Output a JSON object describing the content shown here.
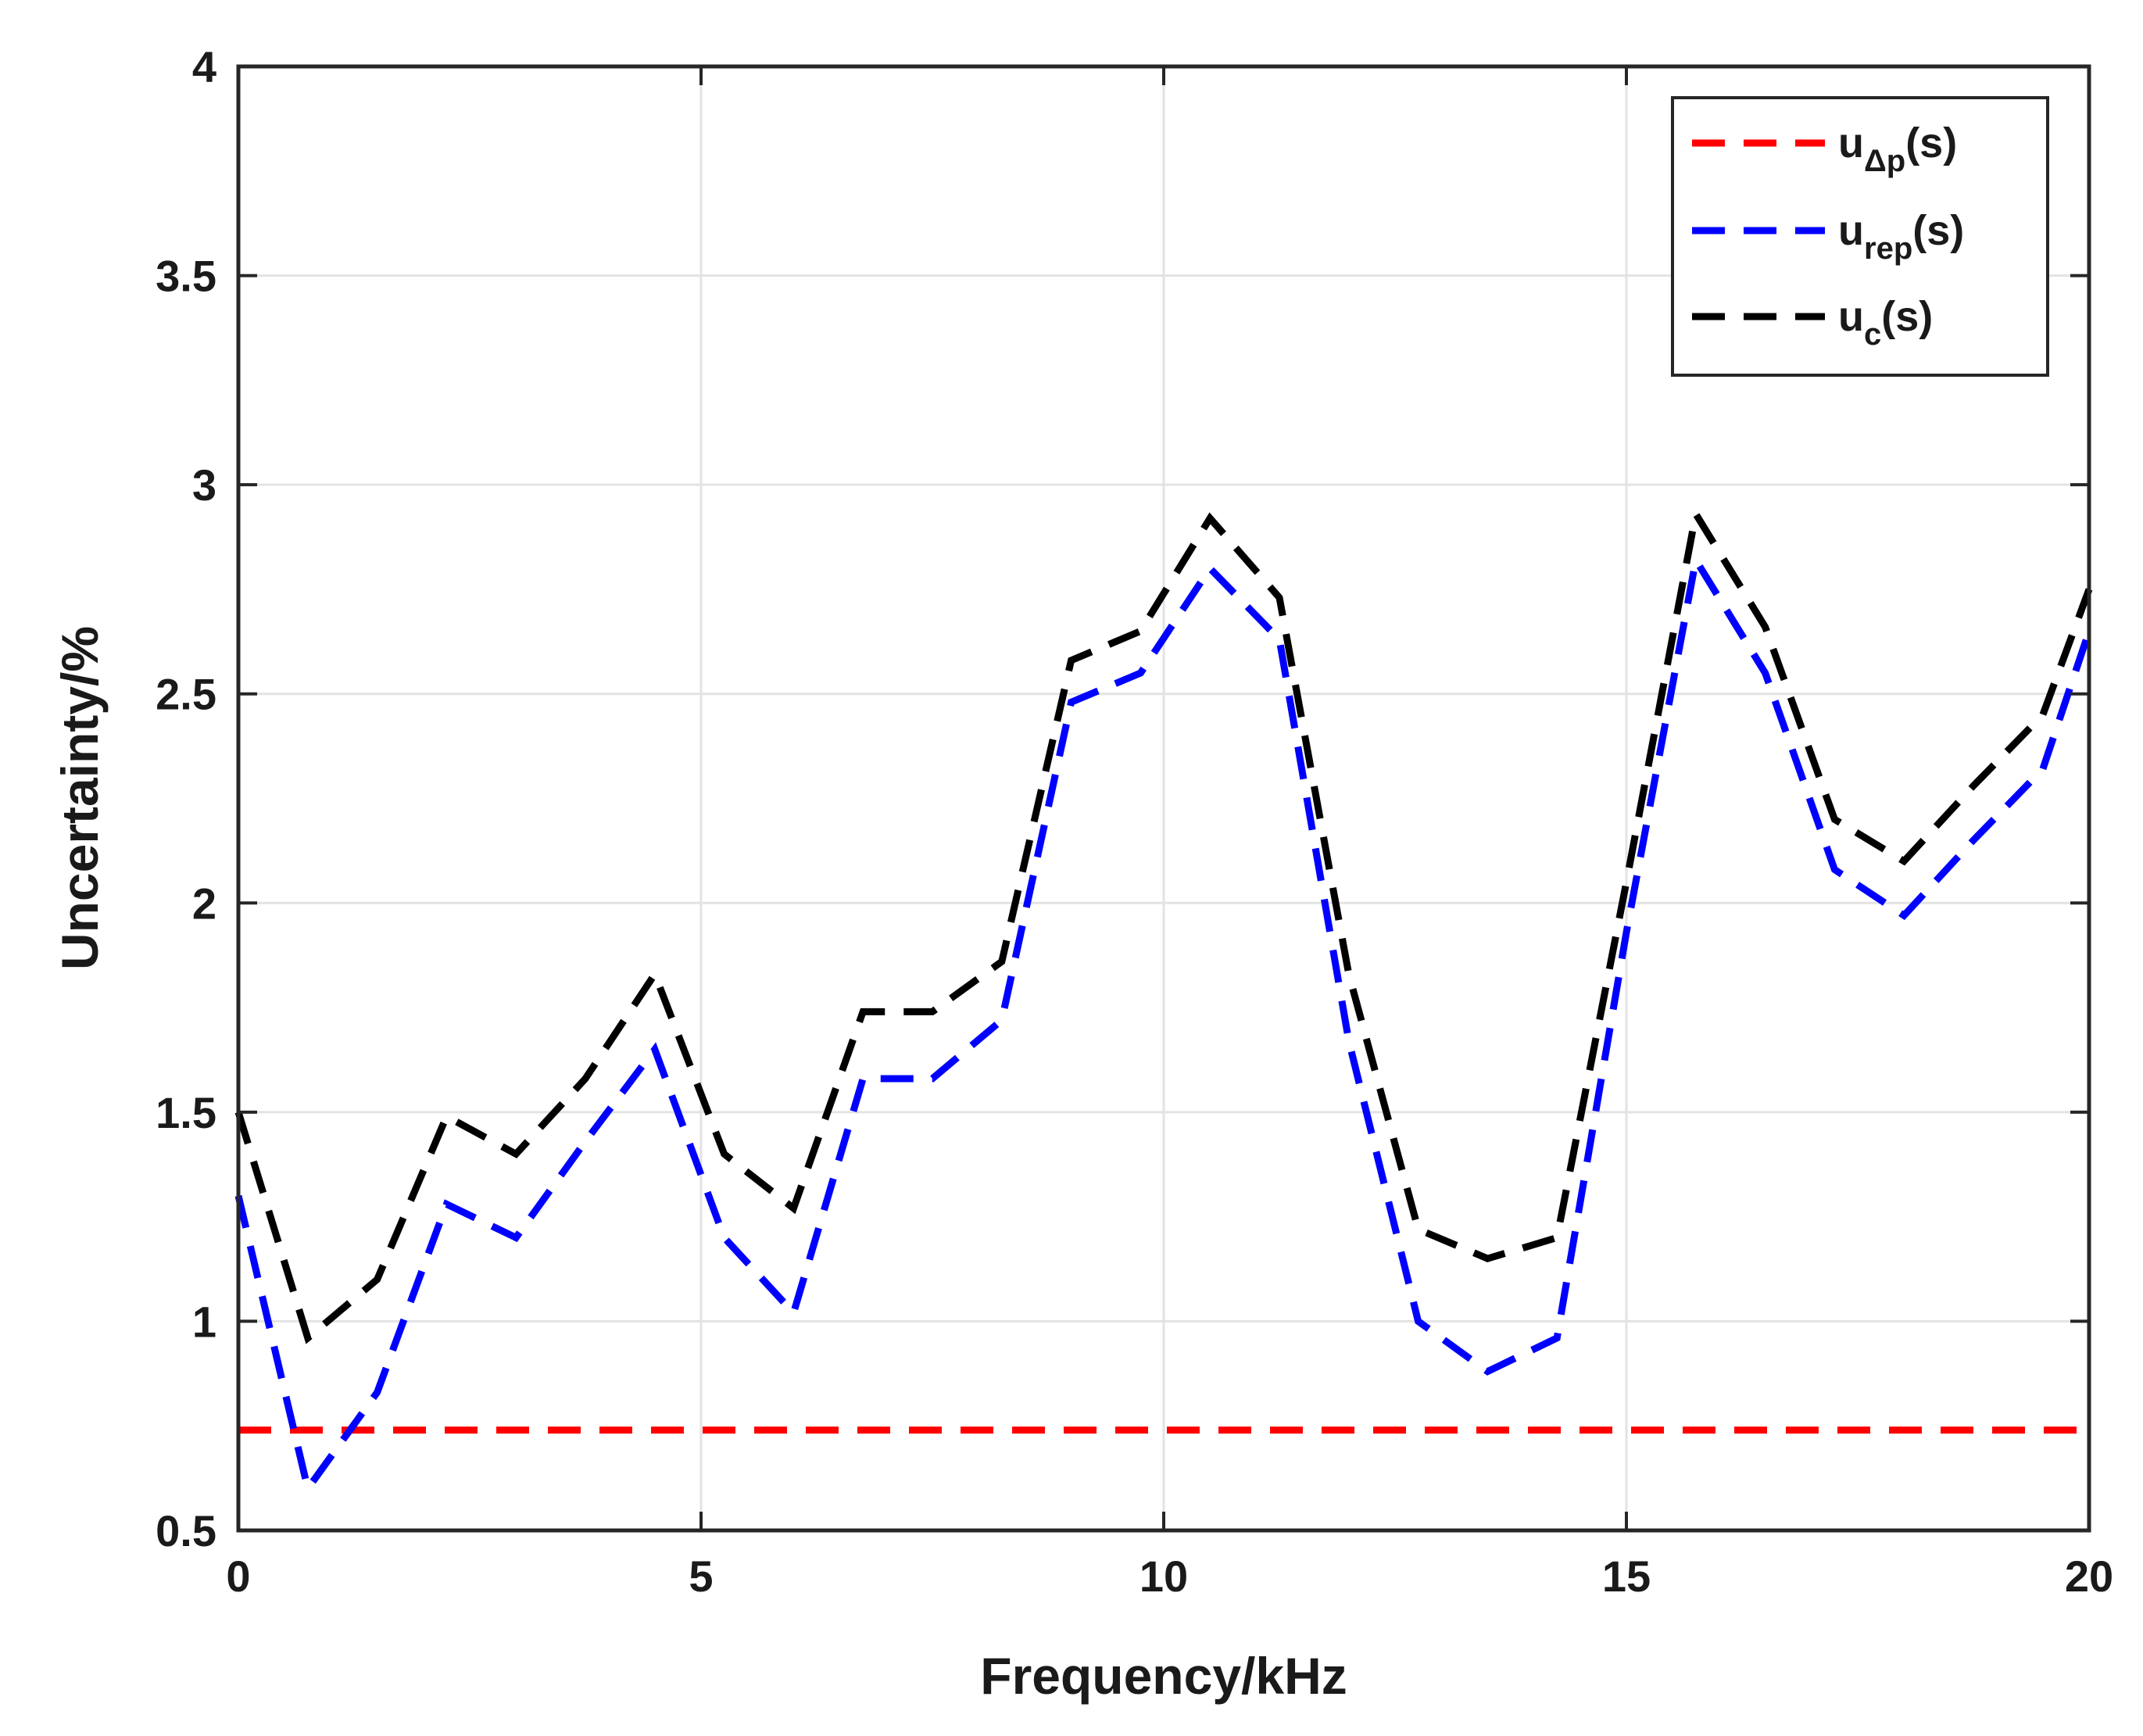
{
  "chart_data": {
    "type": "line",
    "xlabel": "Frequency/kHz",
    "ylabel": "Uncertainty/%",
    "xlim": [
      0,
      20
    ],
    "ylim": [
      0.5,
      4
    ],
    "xticks": [
      0,
      5,
      10,
      15,
      20
    ],
    "xtick_labels": [
      "0",
      "5",
      "10",
      "15",
      "20"
    ],
    "yticks": [
      0.5,
      1,
      1.5,
      2,
      2.5,
      3,
      3.5,
      4
    ],
    "ytick_labels": [
      "0.5",
      "1",
      "1.5",
      "2",
      "2.5",
      "3",
      "3.5",
      "4"
    ],
    "grid": true,
    "legend_position": "top-right",
    "series": [
      {
        "name": "u_Δp(s)",
        "legend_main": "u",
        "legend_sub": "Δp",
        "legend_tail": "(s)",
        "color": "#ff0000",
        "dashed": true,
        "x": [
          0,
          20
        ],
        "y": [
          0.74,
          0.74
        ]
      },
      {
        "name": "u_rep(s)",
        "legend_main": "u",
        "legend_sub": "rep",
        "legend_tail": "(s)",
        "color": "#0000ff",
        "dashed": true,
        "x": [
          0,
          0.75,
          1.5,
          2.25,
          3,
          3.75,
          4.5,
          5.25,
          6,
          6.75,
          7.5,
          8.25,
          9,
          9.75,
          10.5,
          11.25,
          12,
          12.75,
          13.5,
          14.25,
          15,
          15.75,
          16.5,
          17.25,
          18,
          18.75,
          19.5,
          20
        ],
        "y": [
          1.3,
          0.6,
          0.83,
          1.28,
          1.2,
          1.43,
          1.65,
          1.2,
          1.02,
          1.58,
          1.58,
          1.72,
          2.48,
          2.55,
          2.8,
          2.63,
          1.67,
          1.0,
          0.88,
          0.96,
          1.93,
          2.82,
          2.55,
          2.08,
          1.97,
          2.15,
          2.32,
          2.65
        ]
      },
      {
        "name": "u_c(s)",
        "legend_main": "u",
        "legend_sub": "c",
        "legend_tail": "(s)",
        "color": "#000000",
        "dashed": true,
        "x": [
          0,
          0.75,
          1.5,
          2.25,
          3,
          3.75,
          4.5,
          5.25,
          6,
          6.75,
          7.5,
          8.25,
          9,
          9.75,
          10.5,
          11.25,
          12,
          12.75,
          13.5,
          14.25,
          15,
          15.75,
          16.5,
          17.25,
          18,
          18.75,
          19.5,
          20
        ],
        "y": [
          1.5,
          0.96,
          1.1,
          1.49,
          1.4,
          1.58,
          1.83,
          1.4,
          1.27,
          1.74,
          1.74,
          1.86,
          2.58,
          2.65,
          2.92,
          2.73,
          1.83,
          1.22,
          1.15,
          1.2,
          2.05,
          2.93,
          2.66,
          2.2,
          2.1,
          2.28,
          2.45,
          2.75
        ]
      }
    ]
  }
}
